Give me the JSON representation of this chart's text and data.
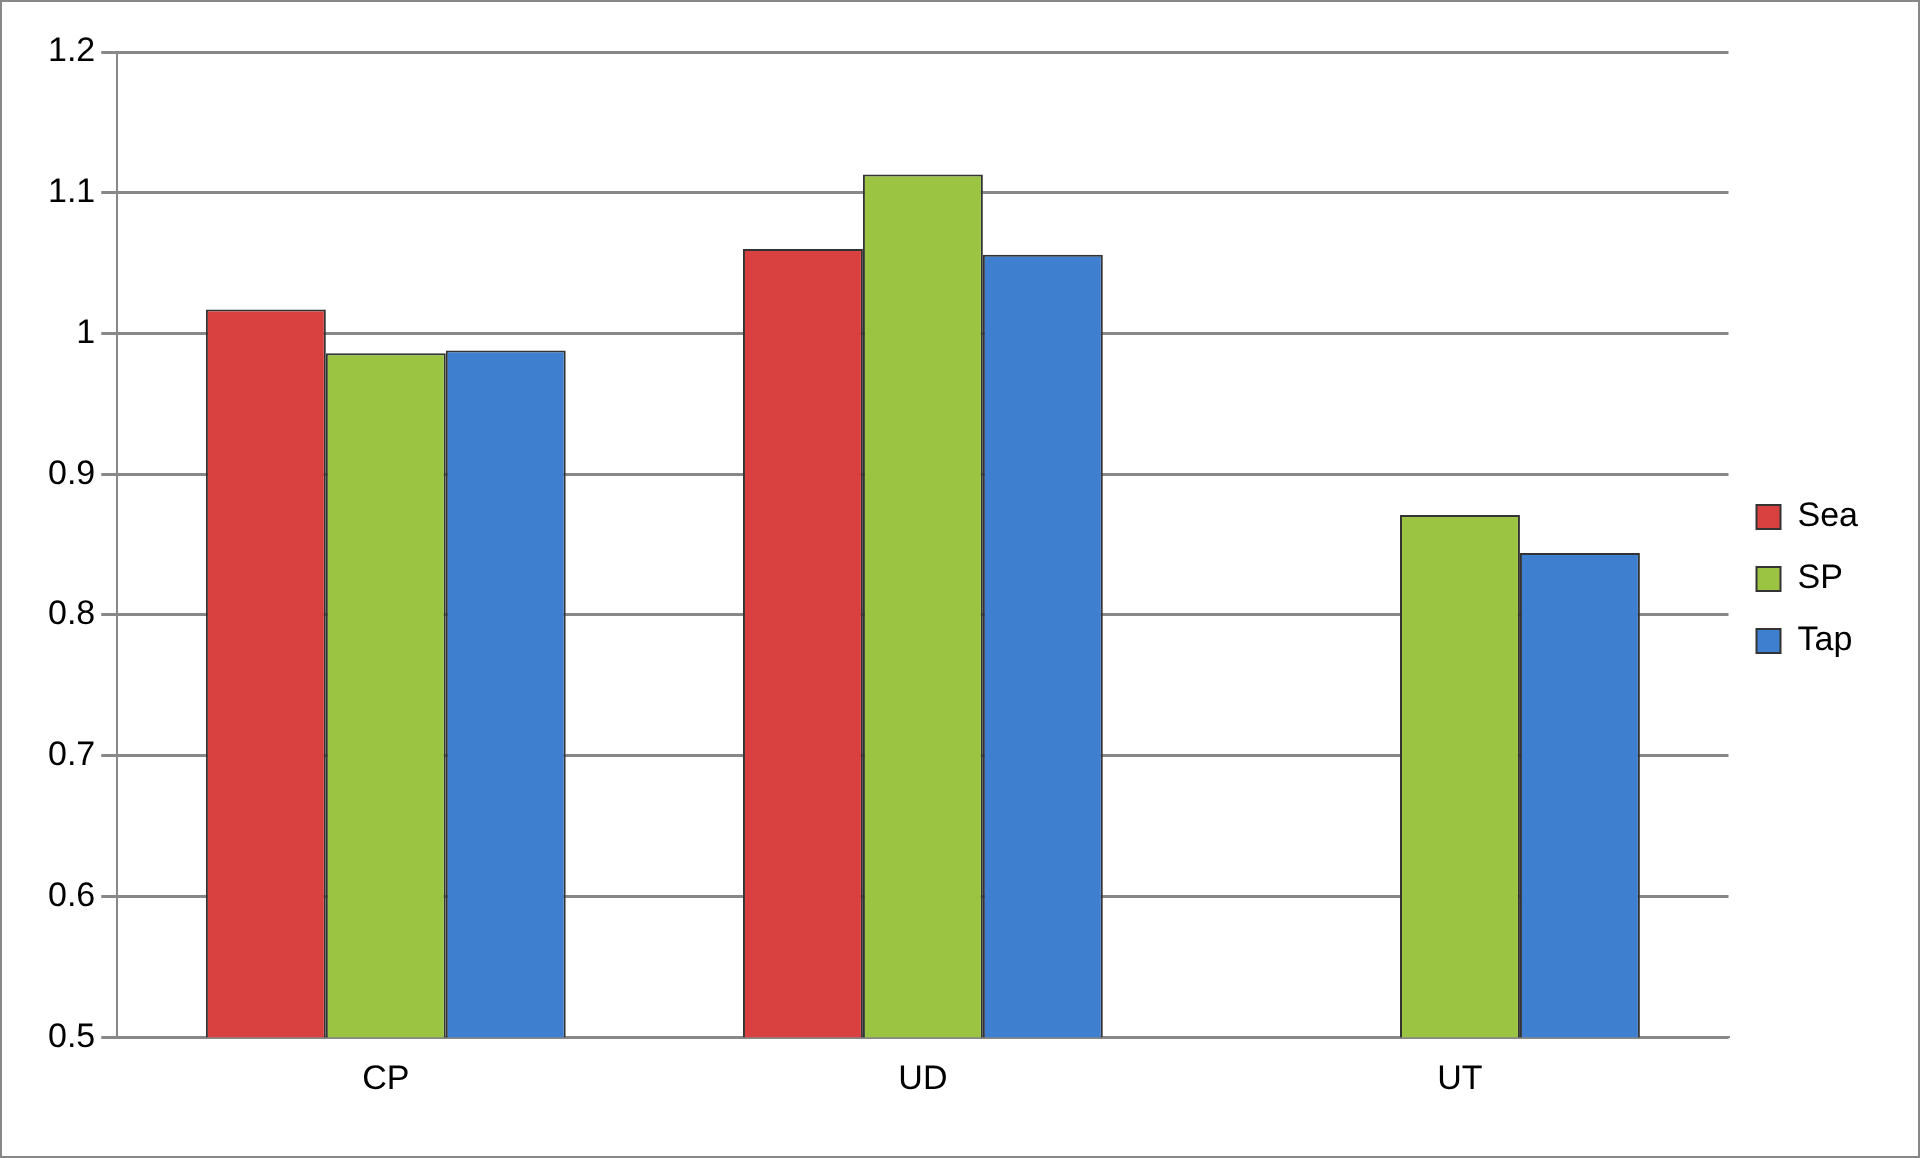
{
  "chart_data": {
    "type": "bar",
    "categories": [
      "CP",
      "UD",
      "UT"
    ],
    "series": [
      {
        "name": "Sea",
        "color": "#d94140",
        "values": [
          1.017,
          1.06,
          null
        ]
      },
      {
        "name": "SP",
        "color": "#9bc443",
        "values": [
          0.986,
          1.113,
          0.871
        ]
      },
      {
        "name": "Tap",
        "color": "#3f7fcf",
        "values": [
          0.988,
          1.056,
          0.844
        ]
      }
    ],
    "ylim": [
      0.5,
      1.2
    ],
    "yticks": [
      0.5,
      0.6,
      0.7,
      0.8,
      0.9,
      1,
      1.1,
      1.2
    ],
    "grid": "y",
    "legend": "right"
  }
}
